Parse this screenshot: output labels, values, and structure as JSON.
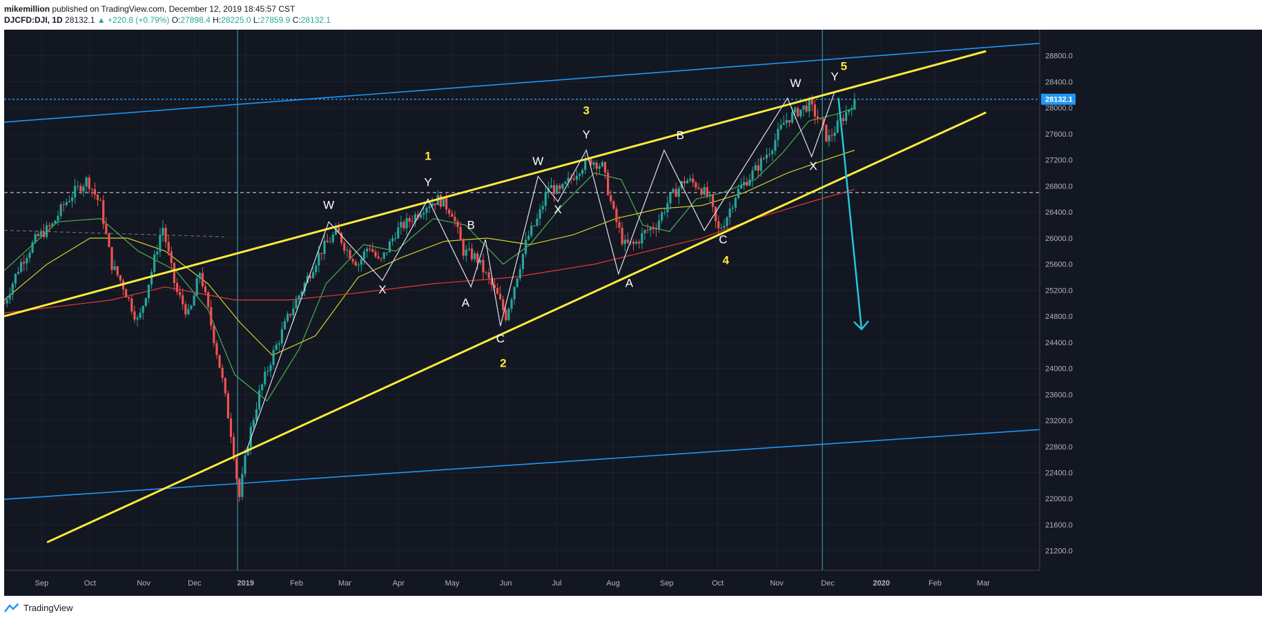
{
  "header": {
    "author": "mikemillion",
    "published_text": "published on TradingView.com, December 12, 2019 18:45:57 CST",
    "symbol": "DJCFD:DJI, 1D",
    "last": "28132.1",
    "change": "▲ +220.8 (+0.79%)",
    "o_label": "O:",
    "o_value": "27898.4",
    "h_label": "H:",
    "h_value": "28225.0",
    "l_label": "L:",
    "l_value": "27859.9",
    "c_label": "C:",
    "c_value": "28132.1"
  },
  "footer": {
    "brand": "TradingView"
  },
  "colors": {
    "background": "#131722",
    "up": "#26a69a",
    "down": "#ef5350",
    "channel": "#ffeb3b",
    "outer_channel": "#2196f3",
    "ma_fast": "#4caf50",
    "ma_mid": "#d4d42a",
    "ma_slow": "#e53935",
    "arrow": "#26c6da",
    "price_line": "#2196f3"
  },
  "chart_data": {
    "type": "candlestick",
    "title": "DJCFD:DJI, 1D",
    "ylim": [
      20900,
      29200
    ],
    "yticks": [
      21200,
      21600,
      22000,
      22400,
      22800,
      23200,
      23600,
      24000,
      24400,
      24800,
      25200,
      25600,
      26000,
      26400,
      26800,
      27200,
      27600,
      28000,
      28400,
      28800
    ],
    "xlabels": [
      "Sep",
      "Oct",
      "Nov",
      "Dec",
      "2019",
      "Feb",
      "Mar",
      "Apr",
      "May",
      "Jun",
      "Jul",
      "Aug",
      "Sep",
      "Oct",
      "Nov",
      "Dec",
      "2020",
      "Feb",
      "Mar"
    ],
    "xlabel_positions": [
      0.7,
      1.6,
      2.6,
      3.55,
      4.5,
      5.45,
      6.35,
      7.35,
      8.35,
      9.35,
      10.3,
      11.35,
      12.35,
      13.3,
      14.4,
      15.35,
      16.35,
      17.35,
      18.25
    ],
    "xlim": [
      0,
      19.3
    ],
    "last_price": 28132.1,
    "last_price_label": "28132.1",
    "dashed_level": 26700,
    "vertical_markers": [
      4.35,
      15.25
    ],
    "price_path": [
      [
        0,
        25000
      ],
      [
        0.3,
        25600
      ],
      [
        0.6,
        26000
      ],
      [
        0.9,
        26200
      ],
      [
        1.1,
        26500
      ],
      [
        1.3,
        26700
      ],
      [
        1.55,
        26900
      ],
      [
        1.8,
        26500
      ],
      [
        2.0,
        25600
      ],
      [
        2.2,
        25300
      ],
      [
        2.5,
        24700
      ],
      [
        2.75,
        25500
      ],
      [
        2.95,
        26200
      ],
      [
        3.2,
        25200
      ],
      [
        3.45,
        24800
      ],
      [
        3.65,
        25500
      ],
      [
        3.85,
        24700
      ],
      [
        4.05,
        23900
      ],
      [
        4.25,
        22900
      ],
      [
        4.38,
        22000
      ],
      [
        4.55,
        22900
      ],
      [
        4.75,
        23600
      ],
      [
        5.0,
        24200
      ],
      [
        5.3,
        24800
      ],
      [
        5.6,
        25300
      ],
      [
        5.9,
        25800
      ],
      [
        6.2,
        26100
      ],
      [
        6.4,
        25800
      ],
      [
        6.6,
        25600
      ],
      [
        6.8,
        25900
      ],
      [
        7.0,
        25600
      ],
      [
        7.3,
        26100
      ],
      [
        7.6,
        26300
      ],
      [
        7.85,
        26500
      ],
      [
        8.1,
        26600
      ],
      [
        8.35,
        26400
      ],
      [
        8.55,
        25800
      ],
      [
        8.8,
        25700
      ],
      [
        9.0,
        25400
      ],
      [
        9.2,
        25100
      ],
      [
        9.35,
        24800
      ],
      [
        9.55,
        25400
      ],
      [
        9.75,
        26000
      ],
      [
        9.95,
        26300
      ],
      [
        10.15,
        26800
      ],
      [
        10.35,
        26700
      ],
      [
        10.55,
        26900
      ],
      [
        10.75,
        27100
      ],
      [
        10.95,
        27200
      ],
      [
        11.15,
        27100
      ],
      [
        11.35,
        26400
      ],
      [
        11.55,
        25900
      ],
      [
        11.75,
        25900
      ],
      [
        11.95,
        26100
      ],
      [
        12.15,
        26200
      ],
      [
        12.4,
        26600
      ],
      [
        12.7,
        26900
      ],
      [
        12.95,
        26800
      ],
      [
        13.15,
        26600
      ],
      [
        13.3,
        26100
      ],
      [
        13.45,
        26300
      ],
      [
        13.65,
        26700
      ],
      [
        13.85,
        26900
      ],
      [
        14.05,
        27100
      ],
      [
        14.3,
        27400
      ],
      [
        14.55,
        27800
      ],
      [
        14.8,
        27950
      ],
      [
        15.0,
        28050
      ],
      [
        15.2,
        27800
      ],
      [
        15.35,
        27500
      ],
      [
        15.55,
        27750
      ],
      [
        15.75,
        28000
      ],
      [
        15.85,
        28132
      ]
    ],
    "moving_averages": [
      {
        "name": "MA fast",
        "color_key": "ma_fast",
        "points": [
          [
            0,
            25500
          ],
          [
            1.0,
            26250
          ],
          [
            1.8,
            26300
          ],
          [
            2.5,
            25800
          ],
          [
            3.2,
            25500
          ],
          [
            3.8,
            24900
          ],
          [
            4.3,
            23900
          ],
          [
            4.9,
            23500
          ],
          [
            5.5,
            24300
          ],
          [
            6.0,
            25300
          ],
          [
            6.7,
            25900
          ],
          [
            7.3,
            25800
          ],
          [
            8.0,
            26300
          ],
          [
            8.6,
            26200
          ],
          [
            9.3,
            25600
          ],
          [
            9.8,
            25900
          ],
          [
            10.4,
            26500
          ],
          [
            11.0,
            27000
          ],
          [
            11.5,
            26900
          ],
          [
            11.9,
            26200
          ],
          [
            12.4,
            26100
          ],
          [
            12.9,
            26600
          ],
          [
            13.4,
            26700
          ],
          [
            14.0,
            26900
          ],
          [
            14.5,
            27300
          ],
          [
            15.0,
            27800
          ],
          [
            15.5,
            27900
          ],
          [
            15.85,
            28000
          ]
        ]
      },
      {
        "name": "MA mid",
        "color_key": "ma_mid",
        "points": [
          [
            0,
            25050
          ],
          [
            0.8,
            25600
          ],
          [
            1.6,
            26000
          ],
          [
            2.3,
            26000
          ],
          [
            3.0,
            25800
          ],
          [
            3.8,
            25300
          ],
          [
            4.4,
            24700
          ],
          [
            5.0,
            24200
          ],
          [
            5.8,
            24500
          ],
          [
            6.6,
            25400
          ],
          [
            7.4,
            25700
          ],
          [
            8.2,
            25950
          ],
          [
            9.0,
            26000
          ],
          [
            9.8,
            25900
          ],
          [
            10.6,
            26050
          ],
          [
            11.4,
            26300
          ],
          [
            12.2,
            26450
          ],
          [
            13.0,
            26500
          ],
          [
            13.8,
            26700
          ],
          [
            14.6,
            27000
          ],
          [
            15.3,
            27200
          ],
          [
            15.85,
            27350
          ]
        ]
      },
      {
        "name": "MA slow",
        "color_key": "ma_slow",
        "points": [
          [
            0,
            24850
          ],
          [
            2.0,
            25050
          ],
          [
            3.0,
            25250
          ],
          [
            4.3,
            25050
          ],
          [
            5.3,
            25050
          ],
          [
            6.5,
            25150
          ],
          [
            8.0,
            25300
          ],
          [
            9.5,
            25400
          ],
          [
            11.0,
            25600
          ],
          [
            12.0,
            25800
          ],
          [
            13.0,
            26000
          ],
          [
            14.0,
            26300
          ],
          [
            15.0,
            26550
          ],
          [
            15.85,
            26750
          ]
        ]
      }
    ],
    "channels": [
      {
        "name": "upper rising channel line",
        "color_key": "channel",
        "from": [
          0,
          24800
        ],
        "to": [
          18.3,
          28870
        ]
      },
      {
        "name": "lower rising channel line",
        "color_key": "channel",
        "from": [
          0.8,
          21330
        ],
        "to": [
          18.3,
          27930
        ]
      },
      {
        "name": "outer upper line",
        "color_key": "outer_channel",
        "from": [
          0,
          27780
        ],
        "to": [
          19.3,
          28990
        ]
      },
      {
        "name": "outer lower line",
        "color_key": "outer_channel",
        "from": [
          0,
          21990
        ],
        "to": [
          19.3,
          23060
        ]
      }
    ],
    "wave_path": [
      [
        4.5,
        22700
      ],
      [
        6.05,
        26250
      ],
      [
        7.05,
        25350
      ],
      [
        7.9,
        26600
      ],
      [
        8.7,
        25250
      ],
      [
        8.97,
        25980
      ],
      [
        9.25,
        24650
      ],
      [
        9.95,
        26950
      ],
      [
        10.32,
        26560
      ],
      [
        10.85,
        27350
      ],
      [
        11.45,
        25450
      ],
      [
        12.3,
        27350
      ],
      [
        13.05,
        26120
      ],
      [
        14.6,
        28150
      ],
      [
        15.05,
        27250
      ],
      [
        15.48,
        28250
      ]
    ],
    "wave_labels": [
      {
        "text": "W",
        "x": 6.05,
        "y": 26450,
        "color": "white"
      },
      {
        "text": "X",
        "x": 7.05,
        "y": 25150,
        "color": "white"
      },
      {
        "text": "Y",
        "x": 7.9,
        "y": 26800,
        "color": "white"
      },
      {
        "text": "1",
        "x": 7.9,
        "y": 27200,
        "color": "yellow"
      },
      {
        "text": "B",
        "x": 8.7,
        "y": 26140,
        "color": "white"
      },
      {
        "text": "A",
        "x": 8.6,
        "y": 24950,
        "color": "white"
      },
      {
        "text": "C",
        "x": 9.25,
        "y": 24400,
        "color": "white"
      },
      {
        "text": "2",
        "x": 9.3,
        "y": 24020,
        "color": "yellow"
      },
      {
        "text": "W",
        "x": 9.95,
        "y": 27120,
        "color": "white"
      },
      {
        "text": "X",
        "x": 10.32,
        "y": 26380,
        "color": "white"
      },
      {
        "text": "Y",
        "x": 10.85,
        "y": 27530,
        "color": "white"
      },
      {
        "text": "3",
        "x": 10.85,
        "y": 27900,
        "color": "yellow"
      },
      {
        "text": "B",
        "x": 12.6,
        "y": 27520,
        "color": "white"
      },
      {
        "text": "A",
        "x": 11.65,
        "y": 25250,
        "color": "white"
      },
      {
        "text": "C",
        "x": 13.4,
        "y": 25920,
        "color": "white"
      },
      {
        "text": "4",
        "x": 13.45,
        "y": 25600,
        "color": "yellow"
      },
      {
        "text": "W",
        "x": 14.75,
        "y": 28320,
        "color": "white"
      },
      {
        "text": "X",
        "x": 15.08,
        "y": 27050,
        "color": "white"
      },
      {
        "text": "Y",
        "x": 15.48,
        "y": 28420,
        "color": "white"
      },
      {
        "text": "5",
        "x": 15.65,
        "y": 28580,
        "color": "yellow"
      }
    ],
    "projection_arrow": {
      "from": [
        15.55,
        28150
      ],
      "to": [
        15.98,
        24600
      ]
    }
  }
}
